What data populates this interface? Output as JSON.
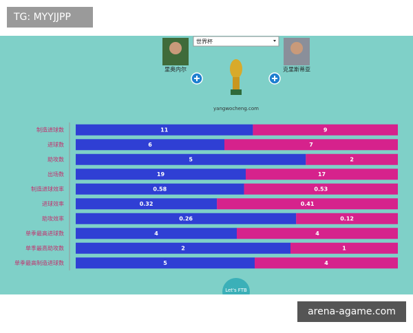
{
  "watermark": "TG: MYYJJPP",
  "footer_watermark": "arena-agame.com",
  "header": {
    "competition": "世界杯",
    "site": "yangwocheng.com",
    "badge": "Let's FTB"
  },
  "chart_data": {
    "type": "bar",
    "orientation": "horizontal",
    "stacking": "percent",
    "categories": [
      "制造进球数",
      "进球数",
      "助攻数",
      "出场数",
      "制造进球效率",
      "进球效率",
      "助攻效率",
      "单季最高进球数",
      "单季最高助攻数",
      "单季最高制造进球数"
    ],
    "series": [
      {
        "name": "里奥内尔",
        "color": "#2f3fd4",
        "values": [
          11,
          6,
          5,
          19,
          0.58,
          0.32,
          0.26,
          4,
          2,
          5
        ]
      },
      {
        "name": "克里斯蒂亚",
        "color": "#d6228c",
        "values": [
          9,
          7,
          2,
          17,
          0.53,
          0.41,
          0.12,
          4,
          1,
          4
        ]
      }
    ]
  }
}
